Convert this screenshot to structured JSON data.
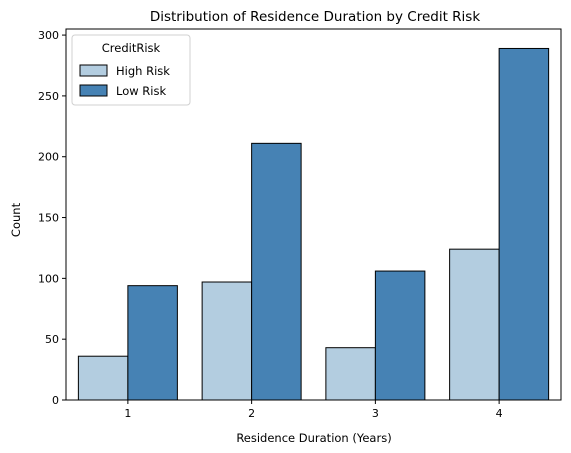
{
  "chart_data": {
    "type": "bar",
    "title": "Distribution of Residence Duration by Credit Risk",
    "xlabel": "Residence Duration (Years)",
    "ylabel": "Count",
    "categories": [
      "1",
      "2",
      "3",
      "4"
    ],
    "series": [
      {
        "name": "High Risk",
        "values": [
          36,
          97,
          43,
          124
        ],
        "color": "#b3cde0"
      },
      {
        "name": "Low Risk",
        "values": [
          94,
          211,
          106,
          289
        ],
        "color": "#4682b4"
      }
    ],
    "ylim": [
      0,
      305
    ],
    "yticks": [
      0,
      50,
      100,
      150,
      200,
      250,
      300
    ],
    "legend": {
      "title": "CreditRisk",
      "placement": "top-left"
    },
    "grid": false
  }
}
